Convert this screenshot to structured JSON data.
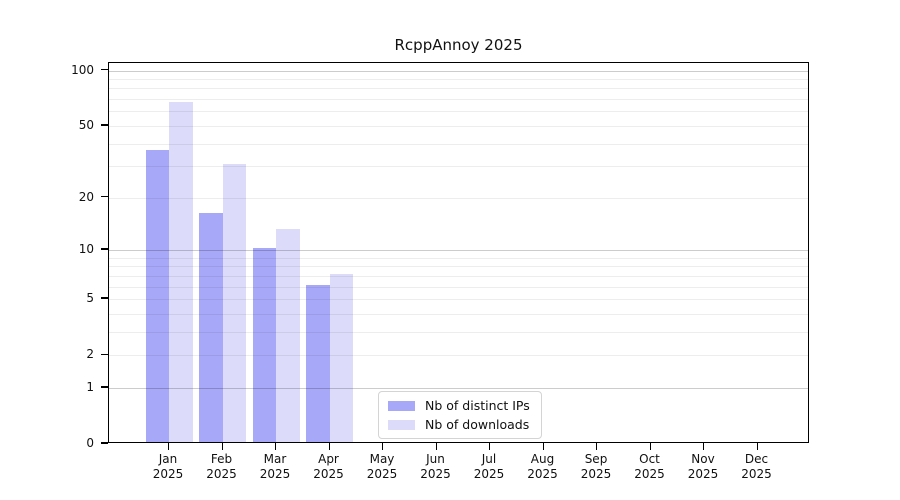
{
  "title": "RcppAnnoy 2025",
  "legend": {
    "items": [
      {
        "label": "Nb of distinct IPs",
        "color": "#a8a8f8"
      },
      {
        "label": "Nb of downloads",
        "color": "#dcdcfa"
      }
    ]
  },
  "colors": {
    "bar_distinct_ips": "#a8a8f8",
    "bar_downloads": "#dcdcfa",
    "axis": "#000000",
    "major_gridline": "rgba(0,0,0,0.20)",
    "minor_gridline": "rgba(0,0,0,0.07)",
    "legend_border": "#d4d4d4",
    "text": "#111111"
  },
  "x_axis": {
    "months": [
      "Jan",
      "Feb",
      "Mar",
      "Apr",
      "May",
      "Jun",
      "Jul",
      "Aug",
      "Sep",
      "Oct",
      "Nov",
      "Dec"
    ],
    "year": "2025"
  },
  "y_axis": {
    "tick_labels": [
      "100",
      "50",
      "20",
      "10",
      "5",
      "2",
      "1",
      "0"
    ],
    "tick_values": [
      100,
      50,
      20,
      10,
      5,
      2,
      1,
      0
    ]
  },
  "chart_data": {
    "type": "bar",
    "title": "RcppAnnoy 2025",
    "categories": [
      "Jan 2025",
      "Feb 2025",
      "Mar 2025",
      "Apr 2025",
      "May 2025",
      "Jun 2025",
      "Jul 2025",
      "Aug 2025",
      "Sep 2025",
      "Oct 2025",
      "Nov 2025",
      "Dec 2025"
    ],
    "series": [
      {
        "name": "Nb of distinct IPs",
        "color": "#a8a8f8",
        "values": [
          36,
          16,
          10,
          6,
          0,
          0,
          0,
          0,
          0,
          0,
          0,
          0
        ]
      },
      {
        "name": "Nb of downloads",
        "color": "#dcdcfa",
        "values": [
          66,
          30,
          13,
          7,
          0,
          0,
          0,
          0,
          0,
          0,
          0,
          0
        ]
      }
    ],
    "xlabel": "",
    "ylabel": "",
    "y_scale": "log1p",
    "y_ticks": [
      0,
      1,
      2,
      5,
      10,
      20,
      50,
      100
    ],
    "y_minor_gridlines": [
      2,
      3,
      4,
      5,
      6,
      7,
      8,
      9,
      20,
      30,
      40,
      50,
      60,
      70,
      80,
      90
    ],
    "y_major_gridlines": [
      1,
      10,
      100
    ],
    "ylim": [
      0,
      110
    ],
    "grid": "horizontal",
    "gridlines_above_bars": true,
    "legend_position": "lower center"
  }
}
